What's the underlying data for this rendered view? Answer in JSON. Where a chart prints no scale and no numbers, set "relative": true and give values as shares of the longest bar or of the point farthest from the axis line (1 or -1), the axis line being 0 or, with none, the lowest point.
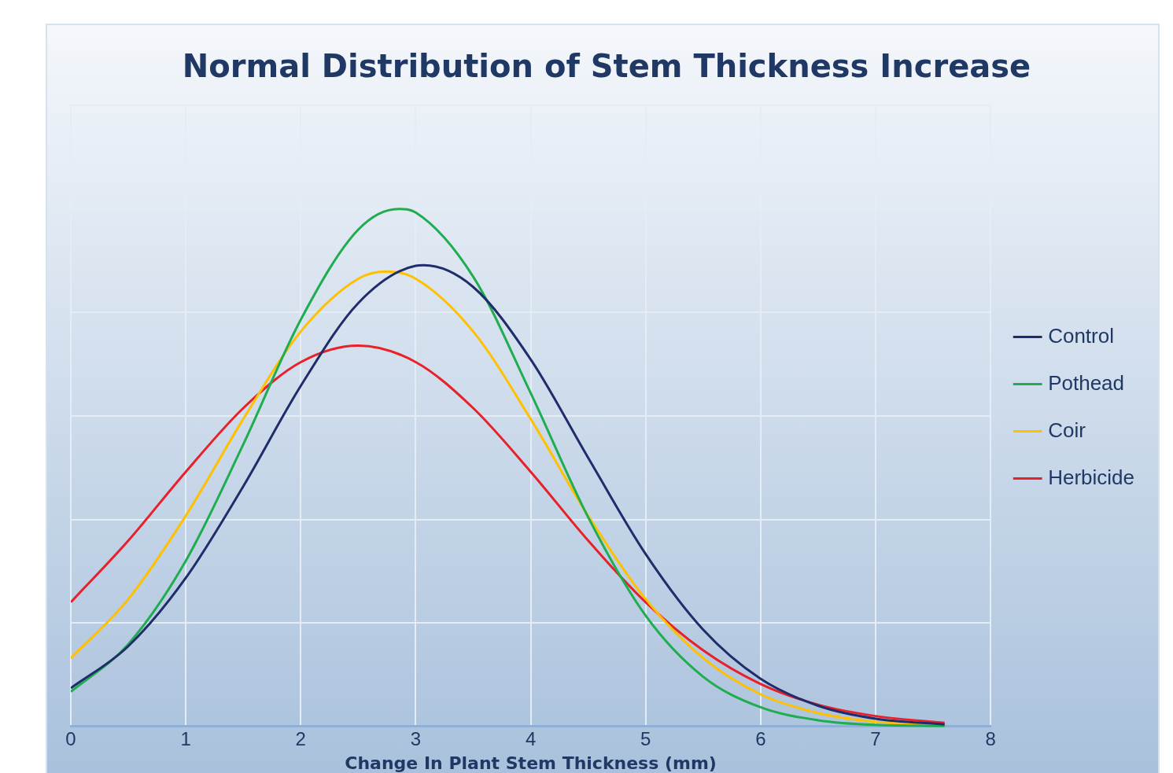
{
  "chart_data": {
    "type": "line",
    "title": "Normal Distribution of Stem Thickness Increase",
    "xlabel": "Change In Plant Stem Thickness (mm)",
    "relative": true,
    "xlim": [
      0,
      8
    ],
    "xticks": [
      0,
      1,
      2,
      3,
      4,
      5,
      6,
      7,
      8
    ],
    "grid": true,
    "legend": "right",
    "marker": "none",
    "line_style": "solid",
    "series": [
      {
        "name": "Control",
        "color": "#1f2d6b",
        "x": [
          0,
          0.5,
          1,
          1.5,
          2,
          2.5,
          3,
          3.07,
          3.5,
          4,
          4.5,
          5,
          5.5,
          6,
          6.5,
          7,
          7.6
        ],
        "values": [
          0.074,
          0.155,
          0.287,
          0.464,
          0.658,
          0.818,
          0.89,
          0.891,
          0.849,
          0.709,
          0.519,
          0.333,
          0.187,
          0.092,
          0.04,
          0.015,
          0.004
        ]
      },
      {
        "name": "Pothead",
        "color": "#1fad4f",
        "x": [
          0,
          0.5,
          1,
          1.5,
          2,
          2.5,
          2.85,
          3,
          3.5,
          4,
          4.5,
          5,
          5.5,
          6,
          6.5,
          7,
          7.6
        ],
        "values": [
          0.067,
          0.159,
          0.32,
          0.545,
          0.786,
          0.96,
          1,
          0.993,
          0.869,
          0.644,
          0.404,
          0.214,
          0.096,
          0.037,
          0.012,
          0.003,
          0.001
        ]
      },
      {
        "name": "Coir",
        "color": "#ffc000",
        "x": [
          0,
          0.5,
          1,
          1.5,
          2,
          2.5,
          2.75,
          3,
          3.5,
          4,
          4.5,
          5,
          5.5,
          6,
          6.5,
          7,
          7.6
        ],
        "values": [
          0.132,
          0.246,
          0.407,
          0.594,
          0.763,
          0.865,
          0.879,
          0.865,
          0.763,
          0.594,
          0.407,
          0.246,
          0.132,
          0.062,
          0.026,
          0.009,
          0.002
        ]
      },
      {
        "name": "Herbicide",
        "color": "#e8202a",
        "x": [
          0,
          0.5,
          1,
          1.5,
          2,
          2.5,
          3,
          3.5,
          4,
          4.5,
          5,
          5.5,
          6,
          6.5,
          7,
          7.6
        ],
        "values": [
          0.24,
          0.359,
          0.492,
          0.615,
          0.704,
          0.736,
          0.704,
          0.615,
          0.492,
          0.359,
          0.24,
          0.147,
          0.082,
          0.042,
          0.02,
          0.007
        ]
      }
    ]
  }
}
